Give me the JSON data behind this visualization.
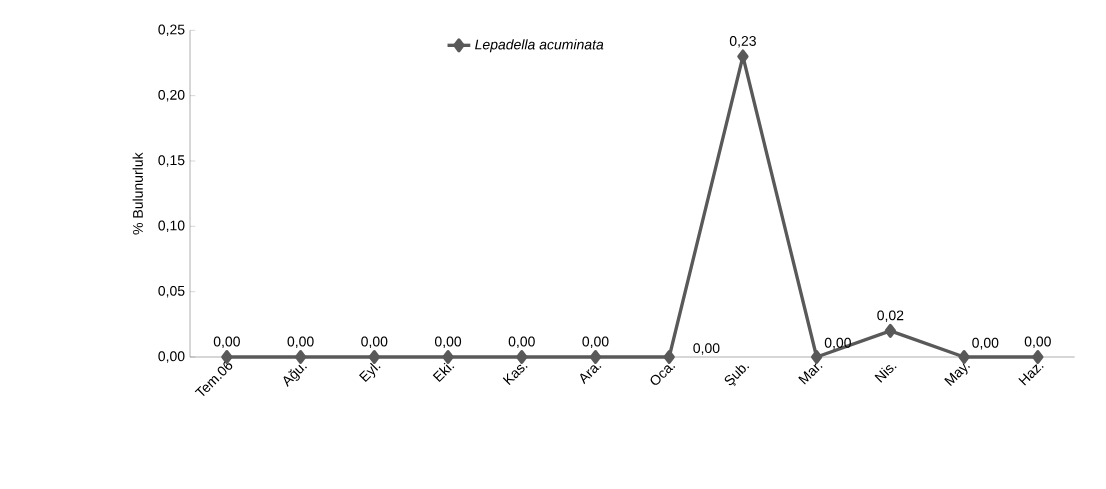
{
  "chart_data": {
    "type": "line",
    "ylabel": "% Bulunurluk",
    "categories": [
      "Tem.06",
      "Ağu.",
      "Eyl.",
      "Eki.",
      "Kas.",
      "Ara.",
      "Oca.",
      "Şub.",
      "Mar.",
      "Nis.",
      "May.",
      "Haz."
    ],
    "series": [
      {
        "name": "Lepadella acuminata",
        "color": "#595959",
        "values": [
          0,
          0,
          0,
          0,
          0,
          0,
          0,
          0.23,
          0,
          0.02,
          0,
          0
        ],
        "value_labels": [
          "0,00",
          "0,00",
          "0,00",
          "0,00",
          "0,00",
          "0,00",
          "0,00",
          "0,23",
          "0,00",
          "0,02",
          "0,00",
          "0,00"
        ]
      }
    ],
    "ylim": [
      0,
      0.25
    ],
    "yticks": [
      {
        "value": 0,
        "label": "0,00"
      },
      {
        "value": 0.05,
        "label": "0,05"
      },
      {
        "value": 0.1,
        "label": "0,10"
      },
      {
        "value": 0.15,
        "label": "0,15"
      },
      {
        "value": 0.2,
        "label": "0,20"
      },
      {
        "value": 0.25,
        "label": "0,25"
      }
    ],
    "marker": "diamond",
    "line_style": "solid",
    "legend": "top",
    "grid": false
  }
}
